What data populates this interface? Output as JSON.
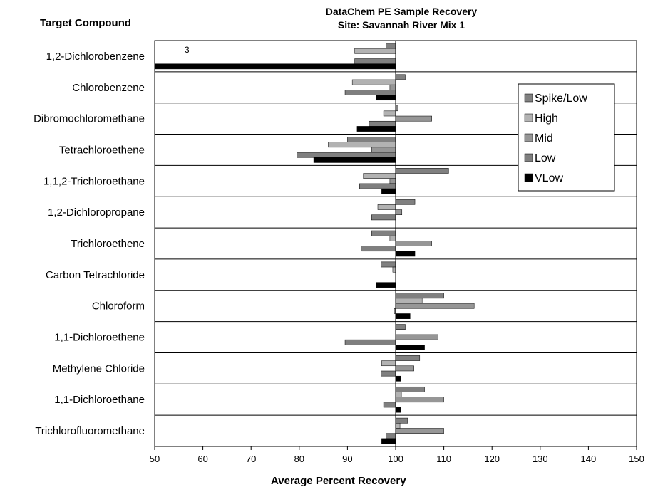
{
  "chart_data": {
    "type": "bar",
    "orientation": "horizontal",
    "title": "DataChem PE Sample Recovery",
    "subtitle": "Site: Savannah River  Mix 1",
    "ylabel": "Target Compound",
    "xlabel": "Average Percent Recovery",
    "xlim": [
      50,
      150
    ],
    "xticks": [
      50,
      60,
      70,
      80,
      90,
      100,
      110,
      120,
      130,
      140,
      150
    ],
    "grid": "horizontal-separators",
    "legend_position": "right",
    "annotation": "3",
    "categories": [
      "1,2-Dichlorobenzene",
      "Chlorobenzene",
      "Dibromochloromethane",
      "Tetrachloroethene",
      "1,1,2-Trichloroethane",
      "1,2-Dichloropropane",
      "Trichloroethene",
      "Carbon Tetrachloride",
      "Chloroform",
      "1,1-Dichloroethene",
      "Methylene Chloride",
      "1,1-Dichloroethane",
      "Trichlorofluoromethane"
    ],
    "series": [
      {
        "name": "Spike/Low",
        "color": "#808080",
        "values": [
          98,
          102,
          100.5,
          90,
          111,
          104,
          95,
          97,
          110,
          102,
          105,
          106,
          102.5
        ]
      },
      {
        "name": "High",
        "color": "#b2b2b2",
        "values": [
          91.5,
          91,
          97.5,
          86,
          93.3,
          96.3,
          98.8,
          99.4,
          105.5,
          100.1,
          97.1,
          101.2,
          100.9
        ]
      },
      {
        "name": "Mid",
        "color": "#969696",
        "values": [
          100,
          98.8,
          107.5,
          95,
          98.8,
          101.3,
          107.5,
          100,
          116.3,
          108.8,
          103.8,
          110,
          110
        ]
      },
      {
        "name": "Low",
        "color": "#7f7f7f",
        "values": [
          91.5,
          89.5,
          94.5,
          79.5,
          92.5,
          95,
          93,
          100,
          99.6,
          89.5,
          97,
          97.5,
          98
        ]
      },
      {
        "name": "VLow",
        "color": "#000000",
        "values": [
          49.5,
          96,
          92,
          83,
          97.1,
          100,
          104,
          96,
          103,
          106,
          101,
          101,
          97.1
        ]
      }
    ]
  }
}
